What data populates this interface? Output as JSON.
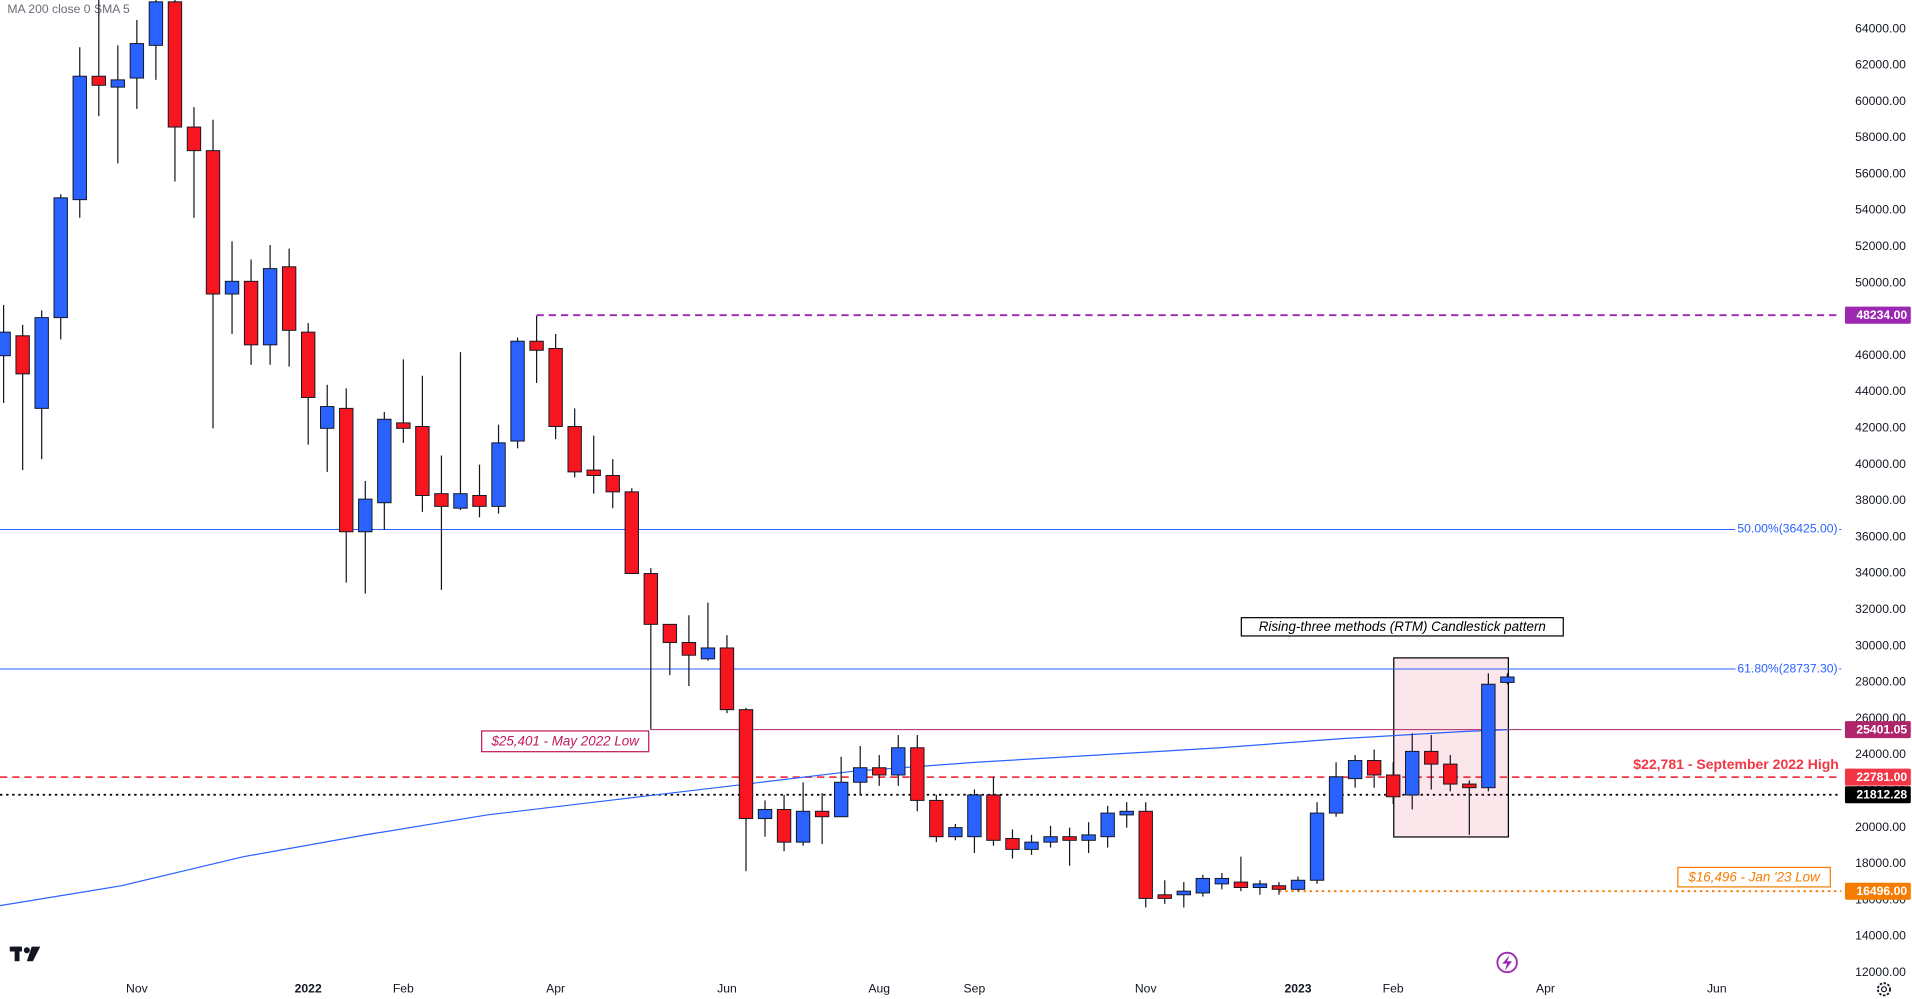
{
  "chart_data": {
    "type": "candlestick",
    "legend_text": "MA 200 close 0 SMA 5",
    "up_color": "#2962ff",
    "down_color": "#f7151f",
    "xlim": [
      -0.19,
      96.54
    ],
    "ylim": [
      11900,
      65600
    ],
    "xticks": [
      {
        "value": 7,
        "label": "Nov"
      },
      {
        "value": 16,
        "label": "2022"
      },
      {
        "value": 21,
        "label": "Feb"
      },
      {
        "value": 29,
        "label": "Apr"
      },
      {
        "value": 38,
        "label": "Jun"
      },
      {
        "value": 46,
        "label": "Aug"
      },
      {
        "value": 51,
        "label": "Sep"
      },
      {
        "value": 60,
        "label": "Nov"
      },
      {
        "value": 68,
        "label": "2023"
      },
      {
        "value": 73,
        "label": "Feb"
      },
      {
        "value": 81,
        "label": "Apr"
      },
      {
        "value": 90,
        "label": "Jun"
      }
    ],
    "yticks": [
      {
        "value": 12000,
        "label": "12000.00"
      },
      {
        "value": 14000,
        "label": "14000.00"
      },
      {
        "value": 16000,
        "label": "16000.00"
      },
      {
        "value": 18000,
        "label": "18000.00"
      },
      {
        "value": 20000,
        "label": "20000.00"
      },
      {
        "value": 22000,
        "label": "22000.00"
      },
      {
        "value": 24000,
        "label": "24000.00"
      },
      {
        "value": 26000,
        "label": "26000.00"
      },
      {
        "value": 28000,
        "label": "28000.00"
      },
      {
        "value": 30000,
        "label": "30000.00"
      },
      {
        "value": 32000,
        "label": "32000.00"
      },
      {
        "value": 34000,
        "label": "34000.00"
      },
      {
        "value": 36000,
        "label": "36000.00"
      },
      {
        "value": 38000,
        "label": "38000.00"
      },
      {
        "value": 40000,
        "label": "40000.00"
      },
      {
        "value": 42000,
        "label": "42000.00"
      },
      {
        "value": 44000,
        "label": "44000.00"
      },
      {
        "value": 46000,
        "label": "46000.00"
      },
      {
        "value": 48000,
        "label": "48000.00"
      },
      {
        "value": 50000,
        "label": "50000.00"
      },
      {
        "value": 52000,
        "label": "52000.00"
      },
      {
        "value": 54000,
        "label": "54000.00"
      },
      {
        "value": 56000,
        "label": "56000.00"
      },
      {
        "value": 58000,
        "label": "58000.00"
      },
      {
        "value": 60000,
        "label": "60000.00"
      },
      {
        "value": 62000,
        "label": "62000.00"
      },
      {
        "value": 64000,
        "label": "64000.00"
      }
    ],
    "candles": {
      "open": [
        46000,
        47100,
        43100,
        48100,
        54600,
        61400,
        60800,
        61300,
        63100,
        65500,
        58600,
        57300,
        49400,
        50100,
        46600,
        50900,
        47300,
        42000,
        43100,
        36300,
        37900,
        42300,
        42100,
        38400,
        37600,
        38300,
        37700,
        41300,
        46800,
        46400,
        42100,
        39700,
        39400,
        38500,
        34000,
        31200,
        30200,
        29300,
        29900,
        26500,
        20500,
        21000,
        19200,
        20900,
        20600,
        22500,
        23300,
        22900,
        24400,
        21500,
        19500,
        19500,
        21800,
        19400,
        18800,
        19200,
        19500,
        19300,
        19500,
        20700,
        20900,
        16300,
        16300,
        16400,
        16900,
        17000,
        16700,
        16800,
        16600,
        17100,
        20800,
        22700,
        23700,
        22900,
        21800,
        24200,
        23500,
        22400,
        22200,
        28000
      ],
      "high": [
        48800,
        47700,
        48500,
        54900,
        63000,
        65600,
        63100,
        64500,
        65600,
        65600,
        59700,
        59000,
        52300,
        51300,
        52100,
        51900,
        47800,
        44400,
        44200,
        39100,
        42900,
        45800,
        44900,
        40500,
        46200,
        40000,
        42200,
        47000,
        48200,
        47200,
        43100,
        41600,
        40300,
        38700,
        34300,
        31200,
        31700,
        32400,
        30600,
        26600,
        21500,
        21800,
        22500,
        21900,
        23900,
        24500,
        24000,
        25100,
        25100,
        21800,
        20200,
        22100,
        22800,
        19900,
        19600,
        20100,
        20000,
        20300,
        21200,
        21400,
        21400,
        17100,
        17000,
        17400,
        17500,
        18400,
        17100,
        17000,
        17300,
        21400,
        23600,
        24000,
        24300,
        23600,
        25200,
        25100,
        24000,
        22600,
        28500,
        28500
      ],
      "low": [
        43400,
        39700,
        40300,
        46900,
        53600,
        59200,
        56600,
        59600,
        61200,
        55600,
        53600,
        42000,
        47200,
        45500,
        45500,
        45400,
        41100,
        39600,
        33500,
        32900,
        36400,
        41200,
        37400,
        33100,
        37500,
        37100,
        37300,
        40900,
        44500,
        41400,
        39300,
        38400,
        37600,
        34000,
        25400,
        28400,
        27800,
        29200,
        26300,
        17600,
        19500,
        18700,
        19000,
        19100,
        20600,
        21800,
        22300,
        22300,
        20900,
        19200,
        19300,
        18600,
        19000,
        18300,
        18500,
        18900,
        17900,
        18600,
        18900,
        20000,
        15600,
        15800,
        15600,
        16200,
        16600,
        16500,
        16300,
        16300,
        16500,
        16900,
        20600,
        22200,
        22200,
        21300,
        21000,
        22100,
        22000,
        19600,
        22000,
        27900
      ],
      "close": [
        47300,
        45000,
        48100,
        54700,
        61400,
        60900,
        61200,
        63200,
        65500,
        58600,
        57300,
        49400,
        50100,
        46600,
        50800,
        47400,
        43700,
        43200,
        36300,
        38100,
        42500,
        42000,
        38300,
        37700,
        38400,
        37700,
        41200,
        46800,
        46300,
        42100,
        39600,
        39400,
        38500,
        34000,
        31200,
        30200,
        29500,
        29900,
        26500,
        20500,
        21000,
        19200,
        20900,
        20600,
        22500,
        23300,
        22900,
        24400,
        21500,
        19500,
        20000,
        21800,
        19300,
        18800,
        19200,
        19500,
        19300,
        19600,
        20800,
        20900,
        16100,
        16100,
        16500,
        17200,
        17200,
        16700,
        16900,
        16600,
        17100,
        20800,
        22800,
        23700,
        22900,
        21700,
        24200,
        23500,
        22400,
        22200,
        27900,
        28300
      ]
    },
    "ma": {
      "color": "#2962ff",
      "x": [
        -0.19,
        6.2,
        12.6,
        19.0,
        25.4,
        31.8,
        38.2,
        44.6,
        51.1,
        57.5,
        63.9,
        70.3,
        76.7,
        79.05
      ],
      "values": [
        15700,
        16800,
        18400,
        19600,
        20700,
        21500,
        22300,
        23100,
        23600,
        24000,
        24400,
        24900,
        25300,
        25400
      ]
    },
    "levels": [
      {
        "value": 48234,
        "label": "48234.00",
        "color": "#9c27b0",
        "style": "dashed"
      },
      {
        "value": 36425,
        "label": "50.00%(36425.00)",
        "color": "#2962ff",
        "style": "solid"
      },
      {
        "value": 28737.3,
        "label": "61.80%(28737.30)",
        "color": "#2962ff",
        "style": "solid"
      },
      {
        "value": 25401.05,
        "label": "25401.05",
        "color": "#b0256a",
        "style": "solid"
      },
      {
        "value": 22781,
        "label": "22781.00",
        "color": "#f23645",
        "style": "dashed"
      },
      {
        "value": 21812.28,
        "label": "21812.28",
        "color": "#000000",
        "style": "dotted"
      },
      {
        "value": 16496,
        "label": "16496.00",
        "color": "#f57c00",
        "style": "dotted"
      }
    ],
    "annotations": [
      {
        "text": "$25,401 - May 2022 Low",
        "color": "#c2185b"
      },
      {
        "text": "$22,781 - September 2022 High",
        "color": "#f23645"
      },
      {
        "text": "$16,496 - Jan '23 Low",
        "color": "#f57c00"
      },
      {
        "text": "Rising-three methods (RTM) Candlestick pattern",
        "color": "#000000"
      }
    ]
  }
}
